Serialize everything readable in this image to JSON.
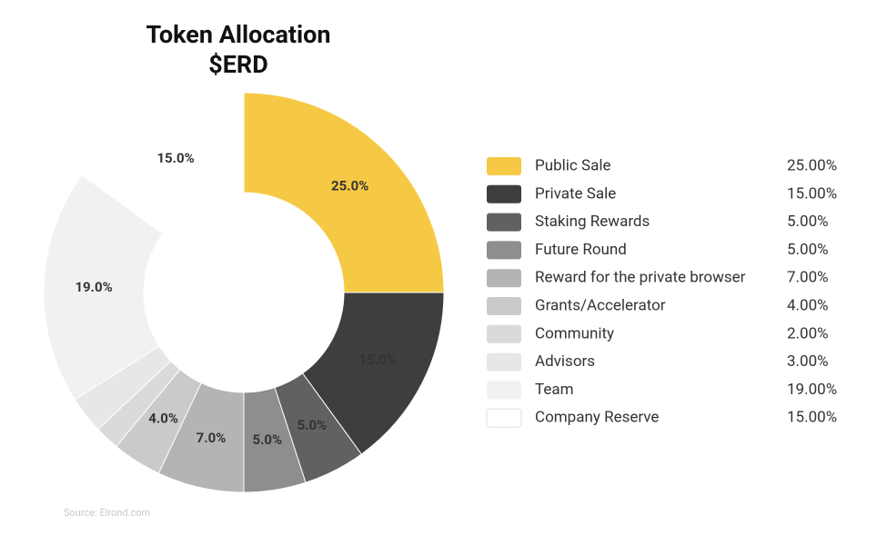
{
  "chart_data": {
    "type": "pie",
    "title": "Token Allocation",
    "subtitle": "$ERD",
    "source": "Source: Elrond.com",
    "categories": [
      "Public Sale",
      "Private Sale",
      "Staking Rewards",
      "Future Round",
      "Reward for the private browser",
      "Grants/Accelerator",
      "Community",
      "Advisors",
      "Team",
      "Company Reserve"
    ],
    "values": [
      25,
      15,
      5,
      5,
      7,
      4,
      2,
      3,
      19,
      15
    ],
    "value_labels": [
      "25.0%",
      "15.0%",
      "5.0%",
      "5.0%",
      "7.0%",
      "4.0%",
      null,
      null,
      "19.0%",
      "15.0%"
    ],
    "legend_labels": [
      "25.00%",
      "15.00%",
      "5.00%",
      "5.00%",
      "7.00%",
      "4.00%",
      "2.00%",
      "3.00%",
      "19.00%",
      "15.00%"
    ],
    "colors": [
      "#f6c945",
      "#3e3e3e",
      "#616161",
      "#8e8e8e",
      "#b4b4b4",
      "#cacaca",
      "#dadada",
      "#e7e7e7",
      "#f1f1f1",
      "#ffffff"
    ],
    "legend": "right"
  }
}
